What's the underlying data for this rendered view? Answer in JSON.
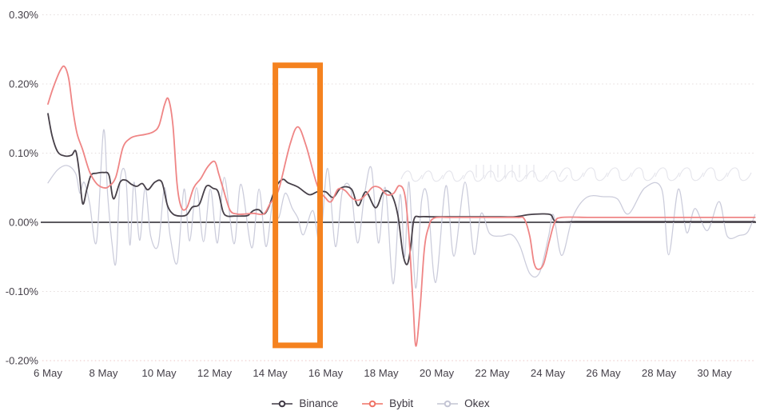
{
  "chart_data": {
    "type": "line",
    "title": "",
    "unit": "%",
    "grid": "horizontal-dotted",
    "legend_position": "bottom-center",
    "x_axis": {
      "tick_labels": [
        "6 May",
        "8 May",
        "10 May",
        "12 May",
        "14 May",
        "16 May",
        "18 May",
        "20 May",
        "22 May",
        "24 May",
        "26 May",
        "28 May",
        "30 May"
      ],
      "tick_days": [
        6,
        8,
        10,
        12,
        14,
        16,
        18,
        20,
        22,
        24,
        26,
        28,
        30
      ],
      "range_days": [
        6,
        31.5
      ]
    },
    "y_axis": {
      "tick_labels": [
        "0.30%",
        "0.20%",
        "0.10%",
        "0.00%",
        "-0.10%",
        "-0.20%"
      ],
      "tick_values": [
        0.3,
        0.2,
        0.1,
        0,
        -0.1,
        -0.2
      ],
      "range": [
        -0.22,
        0.305
      ]
    },
    "series": [
      {
        "name": "Okex",
        "color": "#cbccdb",
        "points": [
          [
            6.0,
            0.057
          ],
          [
            6.35,
            0.076
          ],
          [
            6.7,
            0.082
          ],
          [
            7.0,
            0.07
          ],
          [
            7.15,
            0.042
          ],
          [
            7.3,
            0.058
          ],
          [
            7.5,
            0.028
          ],
          [
            7.75,
            -0.028
          ],
          [
            8.0,
            0.133
          ],
          [
            8.15,
            0.04
          ],
          [
            8.3,
            -0.028
          ],
          [
            8.45,
            -0.058
          ],
          [
            8.6,
            0.06
          ],
          [
            8.8,
            0.068
          ],
          [
            8.95,
            -0.033
          ],
          [
            9.1,
            0.058
          ],
          [
            9.3,
            -0.026
          ],
          [
            9.5,
            0.05
          ],
          [
            9.7,
            -0.02
          ],
          [
            9.97,
            -0.033
          ],
          [
            10.2,
            0.05
          ],
          [
            10.4,
            -0.02
          ],
          [
            10.66,
            -0.058
          ],
          [
            10.9,
            0.048
          ],
          [
            11.1,
            -0.027
          ],
          [
            11.35,
            0.05
          ],
          [
            11.6,
            -0.028
          ],
          [
            11.85,
            0.048
          ],
          [
            12.1,
            -0.03
          ],
          [
            12.35,
            0.065
          ],
          [
            12.7,
            -0.031
          ],
          [
            12.95,
            0.055
          ],
          [
            13.34,
            -0.037
          ],
          [
            13.6,
            0.048
          ],
          [
            13.85,
            -0.035
          ],
          [
            14.1,
            0.03
          ],
          [
            14.3,
            0.006
          ],
          [
            14.54,
            0.042
          ],
          [
            14.8,
            0.02
          ],
          [
            15.0,
            0.006
          ],
          [
            15.2,
            -0.018
          ],
          [
            15.54,
            0.017
          ],
          [
            15.8,
            -0.03
          ],
          [
            16.07,
            0.078
          ],
          [
            16.35,
            -0.035
          ],
          [
            16.6,
            0.045
          ],
          [
            16.9,
            0.048
          ],
          [
            17.15,
            -0.03
          ],
          [
            17.4,
            0.04
          ],
          [
            17.65,
            0.078
          ],
          [
            17.9,
            -0.03
          ],
          [
            18.15,
            0.05
          ],
          [
            18.43,
            -0.089
          ],
          [
            18.68,
            0.04
          ],
          [
            18.85,
            -0.05
          ],
          [
            19.0,
            0.058
          ],
          [
            19.24,
            -0.095
          ],
          [
            19.45,
            0.03
          ],
          [
            19.67,
            0.036
          ],
          [
            19.96,
            -0.087
          ],
          [
            20.33,
            0.053
          ],
          [
            20.62,
            -0.049
          ],
          [
            21.02,
            0.058
          ],
          [
            21.34,
            -0.046
          ],
          [
            21.6,
            0.013
          ],
          [
            21.9,
            -0.016
          ],
          [
            22.3,
            -0.02
          ],
          [
            22.7,
            -0.018
          ],
          [
            23.0,
            -0.035
          ],
          [
            23.35,
            -0.074
          ],
          [
            23.7,
            -0.073
          ],
          [
            24.03,
            -0.02
          ],
          [
            24.2,
            0.011
          ],
          [
            24.5,
            -0.048
          ],
          [
            24.9,
            0.008
          ],
          [
            25.4,
            0.036
          ],
          [
            26.0,
            0.037
          ],
          [
            26.5,
            0.034
          ],
          [
            26.9,
            0.012
          ],
          [
            27.5,
            0.05
          ],
          [
            28.1,
            0.048
          ],
          [
            28.35,
            -0.047
          ],
          [
            28.7,
            0.048
          ],
          [
            29.0,
            -0.015
          ],
          [
            29.3,
            0.02
          ],
          [
            29.74,
            -0.012
          ],
          [
            30.17,
            0.03
          ],
          [
            30.46,
            -0.02
          ],
          [
            30.9,
            -0.019
          ],
          [
            31.2,
            -0.014
          ],
          [
            31.46,
            0.011
          ]
        ]
      },
      {
        "name": "Binance",
        "color": "#474049",
        "points": [
          [
            6.0,
            0.157
          ],
          [
            6.15,
            0.125
          ],
          [
            6.35,
            0.102
          ],
          [
            6.6,
            0.096
          ],
          [
            6.85,
            0.097
          ],
          [
            7.0,
            0.103
          ],
          [
            7.12,
            0.075
          ],
          [
            7.25,
            0.027
          ],
          [
            7.4,
            0.048
          ],
          [
            7.55,
            0.068
          ],
          [
            7.75,
            0.071
          ],
          [
            8.0,
            0.072
          ],
          [
            8.2,
            0.068
          ],
          [
            8.36,
            0.034
          ],
          [
            8.6,
            0.058
          ],
          [
            8.8,
            0.061
          ],
          [
            9.0,
            0.055
          ],
          [
            9.2,
            0.052
          ],
          [
            9.4,
            0.056
          ],
          [
            9.6,
            0.047
          ],
          [
            9.85,
            0.058
          ],
          [
            10.1,
            0.058
          ],
          [
            10.3,
            0.025
          ],
          [
            10.5,
            0.012
          ],
          [
            10.75,
            0.009
          ],
          [
            11.0,
            0.011
          ],
          [
            11.2,
            0.022
          ],
          [
            11.45,
            0.026
          ],
          [
            11.7,
            0.052
          ],
          [
            11.95,
            0.049
          ],
          [
            12.13,
            0.044
          ],
          [
            12.3,
            0.016
          ],
          [
            12.45,
            0.009
          ],
          [
            12.7,
            0.009
          ],
          [
            13.0,
            0.009
          ],
          [
            13.2,
            0.01
          ],
          [
            13.4,
            0.017
          ],
          [
            13.6,
            0.018
          ],
          [
            13.78,
            0.012
          ],
          [
            13.95,
            0.022
          ],
          [
            14.2,
            0.05
          ],
          [
            14.45,
            0.062
          ],
          [
            14.65,
            0.057
          ],
          [
            15.0,
            0.051
          ],
          [
            15.4,
            0.04
          ],
          [
            15.7,
            0.044
          ],
          [
            16.0,
            0.044
          ],
          [
            16.27,
            0.036
          ],
          [
            16.56,
            0.05
          ],
          [
            16.93,
            0.048
          ],
          [
            17.17,
            0.024
          ],
          [
            17.45,
            0.044
          ],
          [
            17.8,
            0.021
          ],
          [
            18.08,
            0.044
          ],
          [
            18.37,
            0.04
          ],
          [
            18.6,
            0.01
          ],
          [
            18.78,
            -0.045
          ],
          [
            18.93,
            -0.061
          ],
          [
            19.05,
            -0.04
          ],
          [
            19.18,
            0.004
          ],
          [
            19.4,
            0.008
          ],
          [
            19.8,
            0.008
          ],
          [
            20.5,
            0.008
          ],
          [
            21.2,
            0.008
          ],
          [
            22.0,
            0.008
          ],
          [
            22.8,
            0.008
          ],
          [
            23.3,
            0.011
          ],
          [
            23.7,
            0.012
          ],
          [
            24.1,
            0.011
          ],
          [
            24.3,
            0.001
          ],
          [
            25.0,
            0.001
          ],
          [
            26.0,
            0.001
          ],
          [
            27.0,
            0.001
          ],
          [
            28.0,
            0.001
          ],
          [
            29.0,
            0.001
          ],
          [
            30.0,
            0.001
          ],
          [
            31.46,
            0.001
          ]
        ]
      },
      {
        "name": "Bybit",
        "color": "#ef8585",
        "points": [
          [
            6.0,
            0.171
          ],
          [
            6.2,
            0.196
          ],
          [
            6.45,
            0.22
          ],
          [
            6.6,
            0.225
          ],
          [
            6.75,
            0.207
          ],
          [
            6.9,
            0.162
          ],
          [
            7.05,
            0.128
          ],
          [
            7.25,
            0.105
          ],
          [
            7.5,
            0.073
          ],
          [
            7.75,
            0.056
          ],
          [
            8.0,
            0.05
          ],
          [
            8.2,
            0.052
          ],
          [
            8.45,
            0.066
          ],
          [
            8.7,
            0.108
          ],
          [
            8.95,
            0.121
          ],
          [
            9.2,
            0.125
          ],
          [
            9.5,
            0.127
          ],
          [
            9.8,
            0.131
          ],
          [
            10.0,
            0.14
          ],
          [
            10.2,
            0.17
          ],
          [
            10.34,
            0.178
          ],
          [
            10.5,
            0.14
          ],
          [
            10.65,
            0.055
          ],
          [
            10.8,
            0.022
          ],
          [
            11.0,
            0.021
          ],
          [
            11.25,
            0.05
          ],
          [
            11.5,
            0.063
          ],
          [
            11.75,
            0.08
          ],
          [
            12.0,
            0.088
          ],
          [
            12.15,
            0.07
          ],
          [
            12.3,
            0.05
          ],
          [
            12.55,
            0.018
          ],
          [
            12.8,
            0.012
          ],
          [
            13.1,
            0.012
          ],
          [
            13.4,
            0.013
          ],
          [
            13.77,
            0.012
          ],
          [
            14.0,
            0.027
          ],
          [
            14.2,
            0.038
          ],
          [
            14.35,
            0.053
          ],
          [
            14.72,
            0.113
          ],
          [
            15.0,
            0.138
          ],
          [
            15.3,
            0.11
          ],
          [
            15.7,
            0.053
          ],
          [
            16.0,
            0.035
          ],
          [
            16.2,
            0.03
          ],
          [
            16.45,
            0.048
          ],
          [
            16.7,
            0.046
          ],
          [
            16.95,
            0.035
          ],
          [
            17.2,
            0.032
          ],
          [
            17.45,
            0.04
          ],
          [
            17.7,
            0.051
          ],
          [
            17.95,
            0.05
          ],
          [
            18.2,
            0.04
          ],
          [
            18.45,
            0.042
          ],
          [
            18.65,
            0.053
          ],
          [
            18.85,
            0.04
          ],
          [
            19.0,
            -0.02
          ],
          [
            19.15,
            -0.12
          ],
          [
            19.25,
            -0.179
          ],
          [
            19.4,
            -0.125
          ],
          [
            19.55,
            -0.04
          ],
          [
            19.7,
            -0.008
          ],
          [
            19.9,
            0.006
          ],
          [
            20.5,
            0.007
          ],
          [
            21.3,
            0.007
          ],
          [
            22.1,
            0.007
          ],
          [
            22.9,
            0.007
          ],
          [
            23.15,
            0.005
          ],
          [
            23.35,
            -0.02
          ],
          [
            23.5,
            -0.058
          ],
          [
            23.65,
            -0.068
          ],
          [
            23.85,
            -0.06
          ],
          [
            24.05,
            -0.028
          ],
          [
            24.25,
            0.0
          ],
          [
            24.5,
            0.007
          ],
          [
            25.5,
            0.007
          ],
          [
            26.5,
            0.007
          ],
          [
            27.5,
            0.007
          ],
          [
            28.5,
            0.007
          ],
          [
            29.5,
            0.007
          ],
          [
            30.5,
            0.007
          ],
          [
            31.46,
            0.007
          ]
        ]
      }
    ],
    "highlight_box": {
      "from_day": 14.09,
      "to_day": 15.9,
      "top_value": 0.231,
      "bottom_value": -0.182,
      "color": "#f5821f",
      "border_px": 7,
      "label": ""
    }
  },
  "legend": {
    "items": [
      {
        "label": "Binance",
        "color": "#3f3844"
      },
      {
        "label": "Bybit",
        "color": "#ef7265"
      },
      {
        "label": "Okex",
        "color": "#c4c5d4"
      }
    ]
  },
  "colors": {
    "background": "#ffffff",
    "axis_text": "#454049",
    "zero_line": "#26232b",
    "grid": "#e4dcdc",
    "grid_bottom": "#ebc6c6",
    "watermark": "#d9d9e2",
    "highlight": "#f5821f"
  },
  "watermark": {
    "description": "faint illegible script watermark across upper-right plot area"
  }
}
